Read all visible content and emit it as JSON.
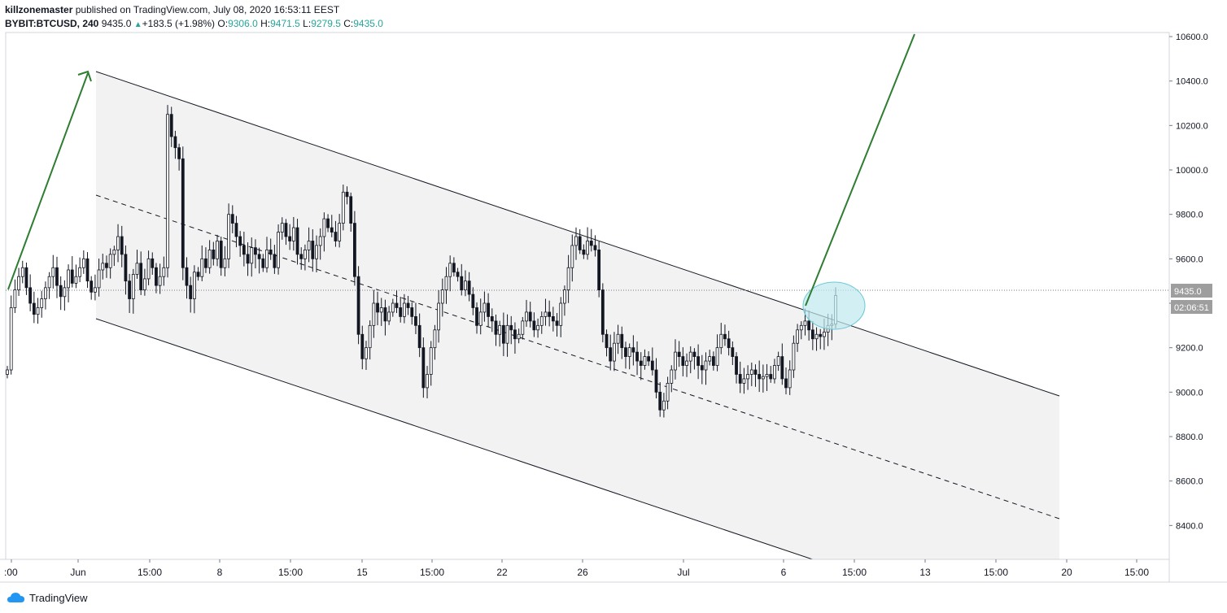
{
  "header": {
    "author": "killzonemaster",
    "published_text": "published on TradingView.com, July 08, 2020 16:53:11 EEST",
    "symbol": "BYBIT:BTCUSD, 240",
    "last": "9435.0",
    "change": "+183.5 (+1.98%)",
    "o_label": "O:",
    "o_value": "9306.0",
    "h_label": "H:",
    "h_value": "9471.5",
    "l_label": "L:",
    "l_value": "9279.5",
    "c_label": "C:",
    "c_value": "9435.0"
  },
  "footer": {
    "brand": "TradingView"
  },
  "colors": {
    "up": "#26a69a",
    "arrow": "#2e7d32",
    "channel_fill": "#f2f2f2",
    "highlight": "#bfe9ef",
    "price_tag": "#9e9e9e"
  },
  "chart_data": {
    "type": "candlestick",
    "y_ticks": [
      "10600.0",
      "10400.0",
      "10200.0",
      "10000.0",
      "9800.0",
      "9600.0",
      "9400.0",
      "9200.0",
      "9000.0",
      "8800.0",
      "8600.0",
      "8400.0"
    ],
    "x_ticks": [
      ":00",
      "Jun",
      "15:00",
      "8",
      "15:00",
      "15",
      "15:00",
      "22",
      "26",
      "Jul",
      "6",
      "15:00",
      "13",
      "15:00",
      "20",
      "15:00"
    ],
    "price_label": "9435.0",
    "countdown_label": "02:06:51",
    "close_series": [
      9100,
      9380,
      9460,
      9520,
      9560,
      9470,
      9400,
      9350,
      9380,
      9420,
      9470,
      9520,
      9560,
      9480,
      9430,
      9470,
      9550,
      9490,
      9520,
      9560,
      9600,
      9500,
      9450,
      9470,
      9550,
      9580,
      9560,
      9620,
      9640,
      9700,
      9620,
      9500,
      9420,
      9530,
      9580,
      9460,
      9510,
      9600,
      9560,
      9480,
      9520,
      9560,
      10250,
      10150,
      10100,
      10050,
      9560,
      9480,
      9420,
      9540,
      9520,
      9600,
      9560,
      9640,
      9600,
      9680,
      9560,
      9600,
      9800,
      9760,
      9700,
      9660,
      9620,
      9580,
      9650,
      9620,
      9600,
      9560,
      9640,
      9620,
      9560,
      9720,
      9760,
      9700,
      9680,
      9740,
      9620,
      9600,
      9640,
      9680,
      9600,
      9660,
      9700,
      9780,
      9740,
      9720,
      9680,
      9760,
      9900,
      9880,
      9760,
      9520,
      9260,
      9150,
      9200,
      9300,
      9400,
      9360,
      9380,
      9320,
      9360,
      9400,
      9380,
      9340,
      9400,
      9380,
      9340,
      9300,
      9200,
      9020,
      9080,
      9200,
      9280,
      9400,
      9460,
      9520,
      9580,
      9540,
      9520,
      9460,
      9500,
      9440,
      9380,
      9300,
      9360,
      9400,
      9340,
      9320,
      9260,
      9300,
      9220,
      9300,
      9280,
      9240,
      9260,
      9320,
      9360,
      9320,
      9280,
      9300,
      9340,
      9360,
      9340,
      9320,
      9300,
      9400,
      9460,
      9560,
      9660,
      9700,
      9640,
      9620,
      9680,
      9660,
      9640,
      9460,
      9260,
      9200,
      9140,
      9220,
      9260,
      9200,
      9160,
      9200,
      9180,
      9140,
      9120,
      9160,
      9140,
      9100,
      9000,
      8920,
      8960,
      9040,
      9100,
      9180,
      9160,
      9120,
      9140,
      9180,
      9160,
      9120,
      9100,
      9140,
      9160,
      9120,
      9200,
      9260,
      9240,
      9200,
      9160,
      9080,
      9040,
      9060,
      9080,
      9100,
      9080,
      9060,
      9070,
      9080,
      9060,
      9120,
      9160,
      9060,
      9020,
      9100,
      9220,
      9280,
      9300,
      9320,
      9280,
      9240,
      9260,
      9250,
      9270,
      9300,
      9306,
      9435
    ],
    "channel": {
      "upper": {
        "x1": 118,
        "y1": 88,
        "x2": 1302,
        "y2": 487
      },
      "lower": {
        "x1": 118,
        "y1": 392,
        "x2": 1302,
        "y2": 790
      },
      "mid": {
        "x1": 118,
        "y1": 240,
        "x2": 1302,
        "y2": 638
      }
    }
  }
}
